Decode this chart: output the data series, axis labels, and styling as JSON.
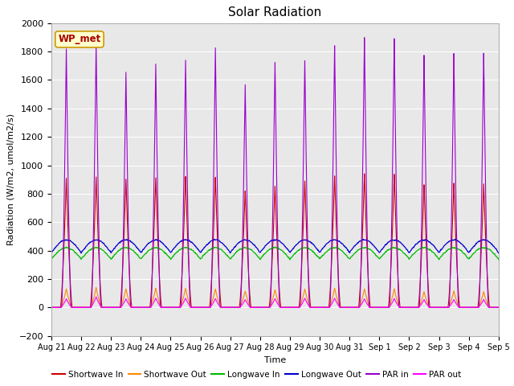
{
  "title": "Solar Radiation",
  "ylabel": "Radiation (W/m2, umol/m2/s)",
  "xlabel": "Time",
  "ylim": [
    -200,
    2000
  ],
  "plot_bg_color": "#e8e8e8",
  "annotation_text": "WP_met",
  "x_tick_labels": [
    "Aug 21",
    "Aug 22",
    "Aug 23",
    "Aug 24",
    "Aug 25",
    "Aug 26",
    "Aug 27",
    "Aug 28",
    "Aug 29",
    "Aug 30",
    "Aug 31",
    "Sep 1",
    "Sep 2",
    "Sep 3",
    "Sep 4",
    "Sep 5"
  ],
  "legend_entries": [
    "Shortwave In",
    "Shortwave Out",
    "Longwave In",
    "Longwave Out",
    "PAR in",
    "PAR out"
  ],
  "legend_colors": [
    "#cc0000",
    "#ff8800",
    "#00bb00",
    "#0000cc",
    "#9900cc",
    "#ff00ff"
  ],
  "n_days": 15,
  "shortwave_in_peaks": [
    910,
    920,
    905,
    915,
    925,
    920,
    825,
    860,
    895,
    930,
    945,
    940,
    865,
    875,
    870
  ],
  "shortwave_out_peaks": [
    130,
    140,
    130,
    135,
    135,
    130,
    115,
    125,
    130,
    135,
    130,
    130,
    110,
    115,
    110
  ],
  "longwave_in_base": 340,
  "longwave_in_day_peak": 420,
  "longwave_out_base": 385,
  "longwave_out_day_peak": 475,
  "par_in_peaks": [
    1820,
    1860,
    1660,
    1720,
    1750,
    1840,
    1580,
    1740,
    1750,
    1855,
    1910,
    1900,
    1780,
    1790,
    1790
  ],
  "par_out_peaks": [
    60,
    75,
    60,
    65,
    65,
    62,
    55,
    62,
    65,
    65,
    60,
    62,
    55,
    55,
    55
  ]
}
